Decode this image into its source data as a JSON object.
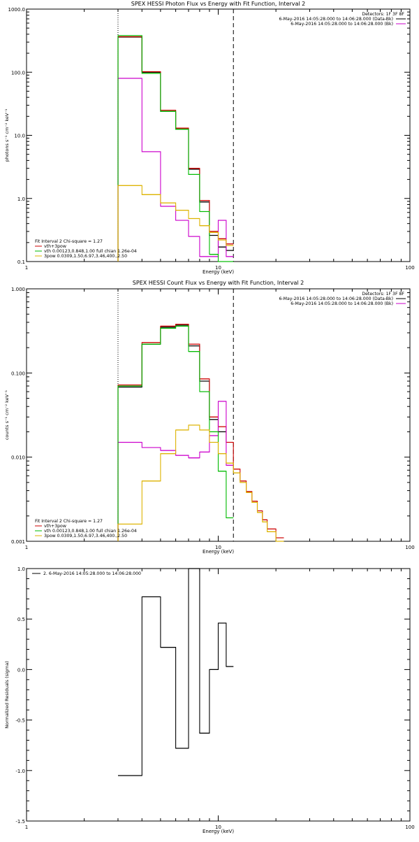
{
  "chart_data": [
    {
      "type": "line",
      "title": "SPEX HESSI Photon Flux vs Energy with Fit Function, Interval 2",
      "xlabel": "Energy (keV)",
      "ylabel": "photons s⁻¹ cm⁻² keV⁻¹",
      "x_scale": "log",
      "y_scale": "log",
      "xlim": [
        1,
        100
      ],
      "ylim": [
        0.1,
        1000
      ],
      "x_tick_labels": [
        "1",
        "10",
        "100"
      ],
      "y_tick_labels": [
        "0.1",
        "1.0",
        "10.0",
        "100.0",
        "1000.0"
      ],
      "legend_top": {
        "header": "Detectors: 1F 3F 8F",
        "entries": [
          {
            "label": "6-May-2016 14:05:28.000 to 14:06:28.000 (Data-Bk)",
            "color": "#000000"
          },
          {
            "label": "6-May-2016 14:05:28.000 to 14:06:28.000 (Bk)",
            "color": "#cc00cc"
          }
        ]
      },
      "legend_bottom": {
        "header": "Fit Interval 2  Chi-square = 1.27",
        "entries": [
          {
            "label": "vth+3pow",
            "color": "#cc0000"
          },
          {
            "label": "vth 0.00123,0.848,1.00  full chian 1.26e-04",
            "color": "#00bb00"
          },
          {
            "label": "3pow 0.0309,1.50,6.97,3.46,400.,2.50",
            "color": "#ddb300"
          }
        ]
      },
      "vlines": [
        {
          "x": 3.0,
          "style": "dotted"
        },
        {
          "x": 12.0,
          "style": "dashed"
        }
      ],
      "bin_edges": [
        3.0,
        4.0,
        5.0,
        6.0,
        7.0,
        8.0,
        9.0,
        10.0,
        11.0,
        12.0
      ],
      "series": [
        {
          "name": "6-May-2016 14:05:28.000 to 14:06:28.000 (Data-Bk)",
          "color": "#000000",
          "values": [
            360,
            100,
            24,
            12.5,
            2.9,
            0.88,
            0.26,
            0.17,
            0.15
          ]
        },
        {
          "name": "vth+3pow",
          "color": "#cc0000",
          "values": [
            365,
            102,
            25,
            13,
            3.0,
            0.93,
            0.3,
            0.23,
            0.19
          ]
        },
        {
          "name": "6-May-2016 14:05:28.000 to 14:06:28.000 (Bk)",
          "color": "#cc00cc",
          "values": [
            80,
            5.5,
            0.75,
            0.45,
            0.25,
            0.12,
            0.12,
            0.45,
            0.12
          ]
        },
        {
          "name": "vth 0.00123,0.848,1.00  full chian 1.26e-04",
          "color": "#00bb00",
          "values": [
            380,
            96,
            24,
            12.5,
            2.4,
            0.62,
            0.13,
            0.1,
            0.1
          ]
        },
        {
          "name": "3pow 0.0309,1.50,6.97,3.46,400.,2.50",
          "color": "#ddb300",
          "values": [
            1.6,
            1.15,
            0.85,
            0.65,
            0.48,
            0.37,
            0.29,
            0.22,
            0.18
          ]
        }
      ]
    },
    {
      "type": "line",
      "title": "SPEX HESSI Count Flux vs Energy with Fit Function, Interval 2",
      "xlabel": "Energy (keV)",
      "ylabel": "counts s⁻¹ cm⁻² keV⁻¹",
      "x_scale": "log",
      "y_scale": "log",
      "xlim": [
        1,
        100
      ],
      "ylim": [
        0.001,
        1.0
      ],
      "x_tick_labels": [
        "1",
        "10",
        "100"
      ],
      "y_tick_labels": [
        "0.001",
        "0.010",
        "0.100",
        "1.000"
      ],
      "legend_top": {
        "header": "Detectors: 1F 3F 8F",
        "entries": [
          {
            "label": "6-May-2016 14:05:28.000 to 14:06:28.000 (Data-Bk)",
            "color": "#000000"
          },
          {
            "label": "6-May-2016 14:05:28.000 to 14:06:28.000 (Bk)",
            "color": "#cc00cc"
          }
        ]
      },
      "legend_bottom": {
        "header": "Fit Interval 2  Chi-square = 1.27",
        "entries": [
          {
            "label": "vth+3pow",
            "color": "#cc0000"
          },
          {
            "label": "vth 0.00123,0.848,1.00  full chian 1.26e-04",
            "color": "#00bb00"
          },
          {
            "label": "3pow 0.0309,1.50,6.97,3.46,400.,2.50",
            "color": "#ddb300"
          }
        ]
      },
      "vlines": [
        {
          "x": 3.0,
          "style": "dotted"
        },
        {
          "x": 12.0,
          "style": "dashed"
        }
      ],
      "bin_edges": [
        3.0,
        4.0,
        5.0,
        6.0,
        7.0,
        8.0,
        9.0,
        10.0,
        11.0,
        12.0,
        13.0,
        14.0,
        15.0,
        16.0,
        17.0,
        18.0,
        20.0,
        22.0,
        24.0
      ],
      "series": [
        {
          "name": "6-May-2016 14:05:28.000 to 14:06:28.000 (Data-Bk)",
          "color": "#000000",
          "values": [
            0.068,
            0.22,
            0.35,
            0.37,
            0.21,
            0.08,
            0.028,
            0.02,
            null,
            null,
            null,
            null,
            null,
            null,
            null,
            null,
            null,
            null
          ]
        },
        {
          "name": "vth+3pow",
          "color": "#cc0000",
          "values": [
            0.072,
            0.23,
            0.36,
            0.38,
            0.22,
            0.085,
            0.03,
            0.023,
            0.015,
            0.0072,
            0.0052,
            0.0039,
            0.003,
            0.0023,
            0.0018,
            0.0014,
            0.0011,
            null
          ]
        },
        {
          "name": "6-May-2016 14:05:28.000 to 14:06:28.000 (Bk)",
          "color": "#cc00cc",
          "values": [
            0.015,
            0.013,
            0.012,
            0.0105,
            0.0098,
            0.0115,
            0.018,
            0.046,
            0.008,
            null,
            null,
            null,
            null,
            null,
            null,
            null,
            null,
            null
          ]
        },
        {
          "name": "vth 0.00123,0.848,1.00  full chian 1.26e-04",
          "color": "#00bb00",
          "values": [
            0.07,
            0.22,
            0.34,
            0.36,
            0.18,
            0.06,
            0.02,
            0.0068,
            0.0019,
            null,
            null,
            null,
            null,
            null,
            null,
            null,
            null,
            null
          ]
        },
        {
          "name": "3pow 0.0309,1.50,6.97,3.46,400.,2.50",
          "color": "#ddb300",
          "values": [
            0.0016,
            0.0052,
            0.011,
            0.021,
            0.024,
            0.021,
            0.015,
            0.011,
            0.0085,
            0.0065,
            0.005,
            0.0038,
            0.0029,
            0.0022,
            0.0017,
            0.0013,
            0.001,
            null
          ]
        }
      ]
    },
    {
      "type": "line",
      "title": "",
      "xlabel": "Energy (keV)",
      "ylabel": "Normalized Residuals (sigma)",
      "x_scale": "log",
      "y_scale": "linear",
      "xlim": [
        1,
        100
      ],
      "ylim": [
        -1.5,
        1.0
      ],
      "x_tick_labels": [
        "1",
        "10",
        "100"
      ],
      "y_tick_labels": [
        "-1.5",
        "-1.0",
        "-0.5",
        "0.0",
        "0.5",
        "1.0"
      ],
      "legend_top": {
        "header": "",
        "entries": [
          {
            "label": "2.  6-May-2016 14:05:28.000 to 14:06:28.000",
            "color": "#000000"
          }
        ]
      },
      "legend_bottom": {
        "header": "",
        "entries": []
      },
      "vlines": [],
      "bin_edges": [
        3.0,
        4.0,
        5.0,
        6.0,
        7.0,
        8.0,
        9.0,
        10.0,
        11.0,
        12.0
      ],
      "series": [
        {
          "name": "2.  6-May-2016 14:05:28.000 to 14:06:28.000",
          "color": "#000000",
          "values": [
            -1.05,
            0.72,
            0.22,
            -0.78,
            1.0,
            -0.63,
            0.0,
            0.46,
            0.03
          ]
        }
      ]
    }
  ]
}
